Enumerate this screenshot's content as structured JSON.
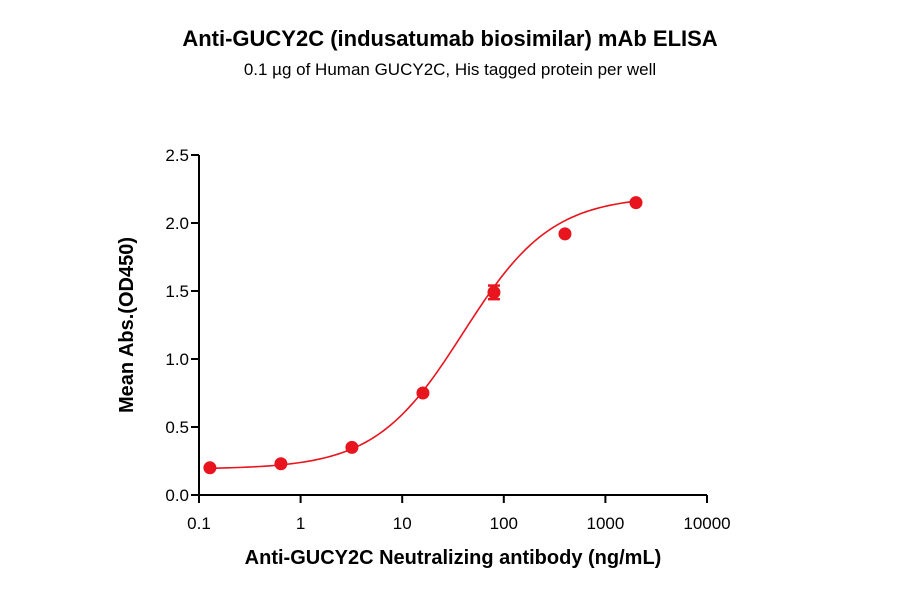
{
  "chart_data": {
    "type": "scatter",
    "title": "Anti-GUCY2C (indusatumab biosimilar) mAb ELISA",
    "subtitle": "0.1 µg of Human GUCY2C, His tagged protein per well",
    "xlabel": "Anti-GUCY2C Neutralizing antibody (ng/mL)",
    "ylabel": "Mean Abs.(OD450)",
    "xscale": "log",
    "xlim": [
      0.1,
      10000
    ],
    "ylim": [
      0,
      2.5
    ],
    "xticks": [
      "0.1",
      "1",
      "10",
      "100",
      "1000",
      "10000"
    ],
    "xtick_values": [
      0.1,
      1,
      10,
      100,
      1000,
      10000
    ],
    "yticks": [
      "0.0",
      "0.5",
      "1.0",
      "1.5",
      "2.0",
      "2.5"
    ],
    "ytick_values": [
      0,
      0.5,
      1.0,
      1.5,
      2.0,
      2.5
    ],
    "grid": false,
    "color": "#e8141e",
    "series": [
      {
        "points": [
          {
            "x": 0.128,
            "y": 0.2,
            "err": 0.01
          },
          {
            "x": 0.64,
            "y": 0.23,
            "err": 0.01
          },
          {
            "x": 3.2,
            "y": 0.35,
            "err": 0.01
          },
          {
            "x": 16,
            "y": 0.75,
            "err": 0.01
          },
          {
            "x": 80,
            "y": 1.49,
            "err": 0.05
          },
          {
            "x": 400,
            "y": 1.92,
            "err": 0.01
          },
          {
            "x": 2000,
            "y": 2.15,
            "err": 0.01
          }
        ],
        "fit": {
          "model": "4PL",
          "bottom": 0.19,
          "top": 2.2,
          "ec50": 40,
          "hill": 1.0
        }
      }
    ]
  }
}
